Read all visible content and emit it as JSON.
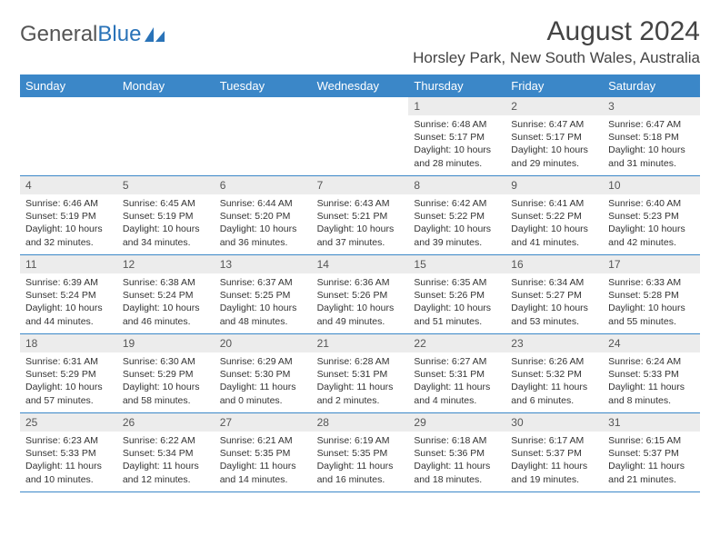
{
  "logo": {
    "text1": "General",
    "text2": "Blue"
  },
  "header": {
    "month_title": "August 2024",
    "location": "Horsley Park, New South Wales, Australia"
  },
  "colors": {
    "header_bg": "#3b87c8",
    "header_text": "#ffffff",
    "daynum_bg": "#ececec",
    "border": "#3b87c8",
    "logo_blue": "#2a73b8"
  },
  "day_names": [
    "Sunday",
    "Monday",
    "Tuesday",
    "Wednesday",
    "Thursday",
    "Friday",
    "Saturday"
  ],
  "weeks": [
    [
      {
        "day": "",
        "sunrise": "",
        "sunset": "",
        "daylight": ""
      },
      {
        "day": "",
        "sunrise": "",
        "sunset": "",
        "daylight": ""
      },
      {
        "day": "",
        "sunrise": "",
        "sunset": "",
        "daylight": ""
      },
      {
        "day": "",
        "sunrise": "",
        "sunset": "",
        "daylight": ""
      },
      {
        "day": "1",
        "sunrise": "Sunrise: 6:48 AM",
        "sunset": "Sunset: 5:17 PM",
        "daylight": "Daylight: 10 hours and 28 minutes."
      },
      {
        "day": "2",
        "sunrise": "Sunrise: 6:47 AM",
        "sunset": "Sunset: 5:17 PM",
        "daylight": "Daylight: 10 hours and 29 minutes."
      },
      {
        "day": "3",
        "sunrise": "Sunrise: 6:47 AM",
        "sunset": "Sunset: 5:18 PM",
        "daylight": "Daylight: 10 hours and 31 minutes."
      }
    ],
    [
      {
        "day": "4",
        "sunrise": "Sunrise: 6:46 AM",
        "sunset": "Sunset: 5:19 PM",
        "daylight": "Daylight: 10 hours and 32 minutes."
      },
      {
        "day": "5",
        "sunrise": "Sunrise: 6:45 AM",
        "sunset": "Sunset: 5:19 PM",
        "daylight": "Daylight: 10 hours and 34 minutes."
      },
      {
        "day": "6",
        "sunrise": "Sunrise: 6:44 AM",
        "sunset": "Sunset: 5:20 PM",
        "daylight": "Daylight: 10 hours and 36 minutes."
      },
      {
        "day": "7",
        "sunrise": "Sunrise: 6:43 AM",
        "sunset": "Sunset: 5:21 PM",
        "daylight": "Daylight: 10 hours and 37 minutes."
      },
      {
        "day": "8",
        "sunrise": "Sunrise: 6:42 AM",
        "sunset": "Sunset: 5:22 PM",
        "daylight": "Daylight: 10 hours and 39 minutes."
      },
      {
        "day": "9",
        "sunrise": "Sunrise: 6:41 AM",
        "sunset": "Sunset: 5:22 PM",
        "daylight": "Daylight: 10 hours and 41 minutes."
      },
      {
        "day": "10",
        "sunrise": "Sunrise: 6:40 AM",
        "sunset": "Sunset: 5:23 PM",
        "daylight": "Daylight: 10 hours and 42 minutes."
      }
    ],
    [
      {
        "day": "11",
        "sunrise": "Sunrise: 6:39 AM",
        "sunset": "Sunset: 5:24 PM",
        "daylight": "Daylight: 10 hours and 44 minutes."
      },
      {
        "day": "12",
        "sunrise": "Sunrise: 6:38 AM",
        "sunset": "Sunset: 5:24 PM",
        "daylight": "Daylight: 10 hours and 46 minutes."
      },
      {
        "day": "13",
        "sunrise": "Sunrise: 6:37 AM",
        "sunset": "Sunset: 5:25 PM",
        "daylight": "Daylight: 10 hours and 48 minutes."
      },
      {
        "day": "14",
        "sunrise": "Sunrise: 6:36 AM",
        "sunset": "Sunset: 5:26 PM",
        "daylight": "Daylight: 10 hours and 49 minutes."
      },
      {
        "day": "15",
        "sunrise": "Sunrise: 6:35 AM",
        "sunset": "Sunset: 5:26 PM",
        "daylight": "Daylight: 10 hours and 51 minutes."
      },
      {
        "day": "16",
        "sunrise": "Sunrise: 6:34 AM",
        "sunset": "Sunset: 5:27 PM",
        "daylight": "Daylight: 10 hours and 53 minutes."
      },
      {
        "day": "17",
        "sunrise": "Sunrise: 6:33 AM",
        "sunset": "Sunset: 5:28 PM",
        "daylight": "Daylight: 10 hours and 55 minutes."
      }
    ],
    [
      {
        "day": "18",
        "sunrise": "Sunrise: 6:31 AM",
        "sunset": "Sunset: 5:29 PM",
        "daylight": "Daylight: 10 hours and 57 minutes."
      },
      {
        "day": "19",
        "sunrise": "Sunrise: 6:30 AM",
        "sunset": "Sunset: 5:29 PM",
        "daylight": "Daylight: 10 hours and 58 minutes."
      },
      {
        "day": "20",
        "sunrise": "Sunrise: 6:29 AM",
        "sunset": "Sunset: 5:30 PM",
        "daylight": "Daylight: 11 hours and 0 minutes."
      },
      {
        "day": "21",
        "sunrise": "Sunrise: 6:28 AM",
        "sunset": "Sunset: 5:31 PM",
        "daylight": "Daylight: 11 hours and 2 minutes."
      },
      {
        "day": "22",
        "sunrise": "Sunrise: 6:27 AM",
        "sunset": "Sunset: 5:31 PM",
        "daylight": "Daylight: 11 hours and 4 minutes."
      },
      {
        "day": "23",
        "sunrise": "Sunrise: 6:26 AM",
        "sunset": "Sunset: 5:32 PM",
        "daylight": "Daylight: 11 hours and 6 minutes."
      },
      {
        "day": "24",
        "sunrise": "Sunrise: 6:24 AM",
        "sunset": "Sunset: 5:33 PM",
        "daylight": "Daylight: 11 hours and 8 minutes."
      }
    ],
    [
      {
        "day": "25",
        "sunrise": "Sunrise: 6:23 AM",
        "sunset": "Sunset: 5:33 PM",
        "daylight": "Daylight: 11 hours and 10 minutes."
      },
      {
        "day": "26",
        "sunrise": "Sunrise: 6:22 AM",
        "sunset": "Sunset: 5:34 PM",
        "daylight": "Daylight: 11 hours and 12 minutes."
      },
      {
        "day": "27",
        "sunrise": "Sunrise: 6:21 AM",
        "sunset": "Sunset: 5:35 PM",
        "daylight": "Daylight: 11 hours and 14 minutes."
      },
      {
        "day": "28",
        "sunrise": "Sunrise: 6:19 AM",
        "sunset": "Sunset: 5:35 PM",
        "daylight": "Daylight: 11 hours and 16 minutes."
      },
      {
        "day": "29",
        "sunrise": "Sunrise: 6:18 AM",
        "sunset": "Sunset: 5:36 PM",
        "daylight": "Daylight: 11 hours and 18 minutes."
      },
      {
        "day": "30",
        "sunrise": "Sunrise: 6:17 AM",
        "sunset": "Sunset: 5:37 PM",
        "daylight": "Daylight: 11 hours and 19 minutes."
      },
      {
        "day": "31",
        "sunrise": "Sunrise: 6:15 AM",
        "sunset": "Sunset: 5:37 PM",
        "daylight": "Daylight: 11 hours and 21 minutes."
      }
    ]
  ]
}
